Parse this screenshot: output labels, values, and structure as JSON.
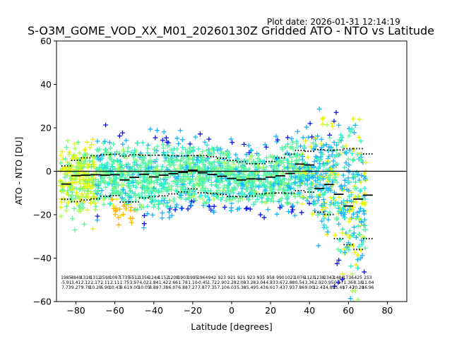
{
  "chart_data": {
    "type": "scatter",
    "title": "S-O3M_GOME_VOD_XX_M01_20260130Z Gridded ATO - NTO vs Latitude",
    "plot_date": "Plot date: 2026-01-31 12:14:19",
    "xlabel": "Latitude [degrees]",
    "ylabel": "ATO - NTO [DU]",
    "xlim": [
      -90,
      90
    ],
    "ylim": [
      -60,
      60
    ],
    "xticks": [
      -80,
      -60,
      -40,
      -20,
      0,
      20,
      40,
      60,
      80
    ],
    "yticks": [
      -60,
      -40,
      -20,
      0,
      20,
      40,
      60
    ],
    "xtick_labels": [
      "−80",
      "−60",
      "−40",
      "−20",
      "0",
      "20",
      "40",
      "60",
      "80"
    ],
    "ytick_labels": [
      "−60",
      "−40",
      "−20",
      "0",
      "20",
      "40",
      "60"
    ],
    "zero_line": 0,
    "marker": "+",
    "colors": {
      "mint": "#5cf59c",
      "teal": "#2ef0c8",
      "cyan": "#1ab4ff",
      "blue": "#0a14f0",
      "yellow": "#e6f500",
      "lime": "#a8ff52",
      "orange": "#ffb400",
      "median_line": "#000000",
      "sigma_dots": "#000000"
    },
    "bins_lat": [
      -85,
      -80,
      -75,
      -70,
      -65,
      -60,
      -55,
      -50,
      -45,
      -40,
      -35,
      -30,
      -25,
      -20,
      -15,
      -10,
      -5,
      0,
      5,
      10,
      15,
      20,
      25,
      30,
      35,
      40,
      45,
      50,
      55,
      60,
      65,
      70
    ],
    "bin_median": [
      -5.9,
      -2.0,
      -1.8,
      -1.6,
      -1.8,
      -1.6,
      -4.0,
      -2.8,
      -1.4,
      -2.6,
      -1.8,
      -1.1,
      -0.5,
      0.5,
      -0.7,
      -1.5,
      -2.3,
      -3.3,
      -4.0,
      -3.5,
      -3.6,
      -2.7,
      -2.1,
      -1.0,
      3.3,
      2.9,
      -7.9,
      -6.1,
      -10.6,
      -16.0,
      -12.8,
      -11.0
    ],
    "bin_upper_sigma": [
      2.5,
      5.0,
      6.2,
      7.2,
      7.6,
      7.8,
      7.0,
      7.6,
      7.4,
      7.4,
      7.4,
      7.2,
      7.1,
      7.2,
      7.2,
      6.7,
      6.0,
      5.0,
      4.3,
      3.5,
      3.5,
      4.5,
      6.2,
      7.9,
      9.6,
      9.2,
      10.0,
      9.7,
      9.8,
      10.4,
      10.4,
      8.0
    ],
    "bin_lower_sigma": [
      -12.9,
      -14.0,
      -13.2,
      -12.7,
      -11.5,
      -11.2,
      -14.2,
      -14.1,
      -12.3,
      -11.7,
      -11.3,
      -10.4,
      -9.5,
      -8.1,
      -9.9,
      -10.2,
      -10.7,
      -11.6,
      -11.7,
      -11.4,
      -10.4,
      -10.1,
      -10.0,
      -10.1,
      -8.9,
      -9.6,
      -18.8,
      -19.9,
      -31.0,
      -33.8,
      -36.0,
      -31.0
    ],
    "stat_rows": [
      [
        "1985",
        "4849",
        "1318",
        "1312",
        "2590",
        "1097",
        "1735",
        "5512",
        "1356",
        "1244",
        "1152",
        "1208",
        "1903",
        "1995",
        "1964",
        "942",
        "923",
        "921",
        "921",
        "923",
        "935",
        "958",
        "990",
        "1021",
        "1076",
        "1123",
        "1238",
        "1343",
        "1484",
        "1736",
        "425",
        "253"
      ],
      [
        "-5.91",
        "3.41",
        "2.12",
        "2.17",
        "2.11",
        "2.11",
        "1.75",
        "3.97",
        "4.02",
        "2.84",
        "1.42",
        "2.66",
        "1.78",
        "1.10",
        "-0.45",
        "1.72",
        "2.90",
        "2.28",
        "2.08",
        "3.28",
        "3.04",
        "4.83",
        "3.67",
        "2.88",
        "0.54",
        "3.36",
        "2.92",
        "0.95",
        "0.17",
        "1.36",
        "8.18",
        "11.04"
      ],
      [
        "7.73",
        "9.27",
        "9.78",
        "10.20",
        "6.90",
        "10.43",
        "9.61",
        "9.00",
        "10.05",
        "8.89",
        "7.38",
        "6.07",
        "6.88",
        "7.27",
        "7.87",
        "7.35",
        "7.10",
        "6.03",
        "5.38",
        "5.49",
        "5.43",
        "6.61",
        "7.43",
        "7.93",
        "7.86",
        "9.00",
        "12.47",
        "14.80",
        "15.40",
        "17.47",
        "20.28",
        "16.96"
      ]
    ]
  }
}
